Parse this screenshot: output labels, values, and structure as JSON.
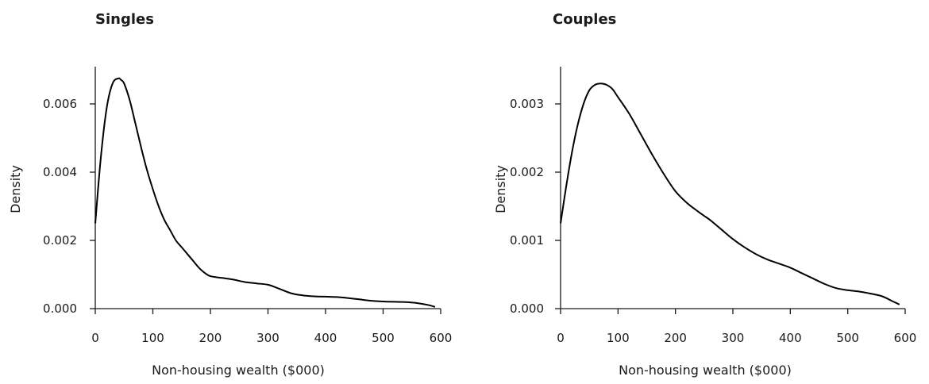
{
  "chart_data": [
    {
      "type": "line",
      "title": "Singles",
      "xlabel": "Non-housing wealth ($000)",
      "ylabel": "Density",
      "xlim": [
        0,
        600
      ],
      "ylim": [
        0,
        0.007
      ],
      "xticks": [
        "0",
        "100",
        "200",
        "300",
        "400",
        "500",
        "600"
      ],
      "yticks": [
        "0.000",
        "0.002",
        "0.004",
        "0.006"
      ],
      "grid": false,
      "series": [
        {
          "x": [
            0,
            10,
            20,
            30,
            40,
            45,
            50,
            60,
            70,
            80,
            90,
            100,
            110,
            120,
            130,
            140,
            150,
            160,
            170,
            180,
            190,
            200,
            220,
            240,
            260,
            280,
            300,
            320,
            340,
            360,
            380,
            400,
            420,
            440,
            460,
            480,
            500,
            520,
            540,
            560,
            580,
            590
          ],
          "y": [
            0.0025,
            0.0045,
            0.0059,
            0.0066,
            0.00675,
            0.0067,
            0.0066,
            0.0061,
            0.0054,
            0.0047,
            0.00405,
            0.0035,
            0.003,
            0.0026,
            0.0023,
            0.002,
            0.0018,
            0.0016,
            0.0014,
            0.0012,
            0.00105,
            0.00095,
            0.0009,
            0.00085,
            0.00078,
            0.00074,
            0.0007,
            0.00058,
            0.00045,
            0.00039,
            0.00036,
            0.00035,
            0.00034,
            0.00031,
            0.00027,
            0.00023,
            0.00021,
            0.0002,
            0.00019,
            0.00016,
            0.0001,
            5e-05
          ]
        }
      ]
    },
    {
      "type": "line",
      "title": "Couples",
      "xlabel": "Non-housing wealth ($000)",
      "ylabel": "Density",
      "xlim": [
        0,
        600
      ],
      "ylim": [
        0,
        0.0035
      ],
      "xticks": [
        "0",
        "100",
        "200",
        "300",
        "400",
        "500",
        "600"
      ],
      "yticks": [
        "0.000",
        "0.001",
        "0.002",
        "0.003"
      ],
      "grid": false,
      "series": [
        {
          "x": [
            0,
            10,
            20,
            30,
            40,
            50,
            60,
            70,
            80,
            90,
            100,
            120,
            140,
            160,
            180,
            200,
            220,
            240,
            260,
            280,
            300,
            320,
            340,
            360,
            380,
            400,
            420,
            440,
            460,
            480,
            500,
            520,
            540,
            560,
            580,
            590
          ],
          "y": [
            0.00125,
            0.0018,
            0.0023,
            0.0027,
            0.003,
            0.0032,
            0.00328,
            0.0033,
            0.00328,
            0.00322,
            0.0031,
            0.00285,
            0.00255,
            0.00225,
            0.00197,
            0.00172,
            0.00155,
            0.00142,
            0.0013,
            0.00116,
            0.00102,
            0.0009,
            0.0008,
            0.00072,
            0.00066,
            0.0006,
            0.00052,
            0.00044,
            0.00036,
            0.0003,
            0.00027,
            0.00025,
            0.00022,
            0.00018,
            0.0001,
            6e-05
          ]
        }
      ]
    }
  ]
}
